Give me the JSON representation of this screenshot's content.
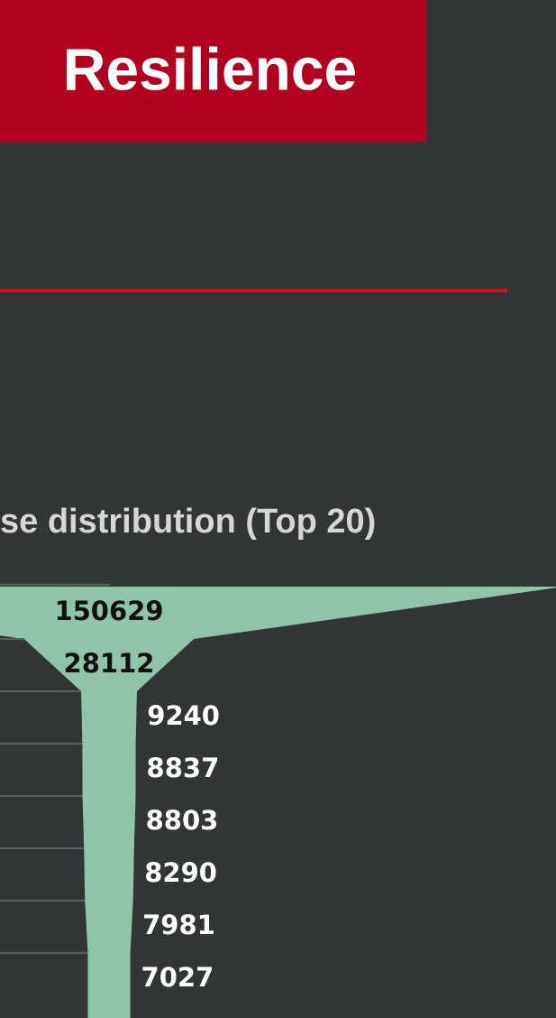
{
  "header": {
    "title": "Resilience"
  },
  "chart_data": {
    "type": "funnel",
    "title": "se distribution (Top 20)",
    "color": "#8fc4a8",
    "values": [
      150629,
      28112,
      9240,
      8837,
      8803,
      8290,
      7981,
      7027
    ]
  }
}
